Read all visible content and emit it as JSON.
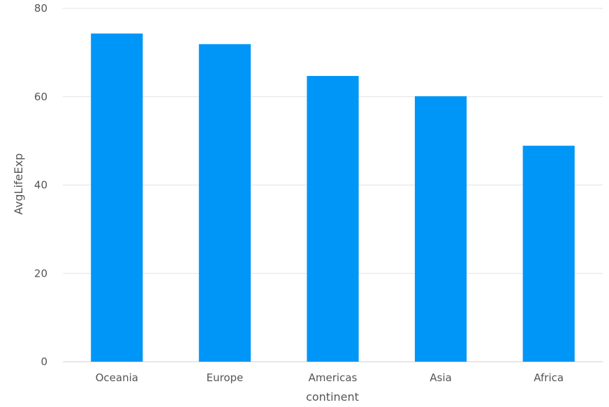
{
  "chart_data": {
    "type": "bar",
    "categories": [
      "Oceania",
      "Europe",
      "Americas",
      "Asia",
      "Africa"
    ],
    "values": [
      74.3,
      71.9,
      64.7,
      60.1,
      48.9
    ],
    "xlabel": "continent",
    "ylabel": "AvgLifeExp",
    "ylim": [
      0,
      80
    ],
    "yticks": [
      "0",
      "20",
      "40",
      "60",
      "80"
    ],
    "grid": true,
    "bar_color": "#0096f7"
  }
}
